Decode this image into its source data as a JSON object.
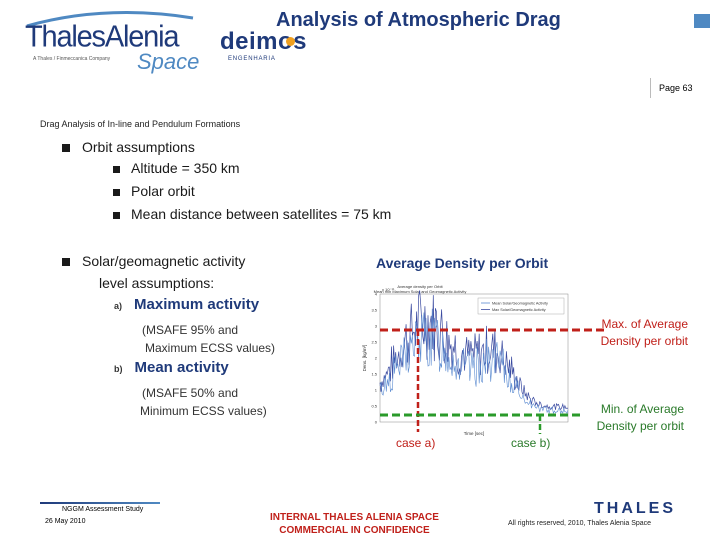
{
  "header": {
    "title": "Analysis of Atmospheric Drag",
    "page_label": "Page 63",
    "logos": {
      "thales_alenia": "ThalesAlenia",
      "thales_alenia_space": "Space",
      "thales_alenia_tagline": "A Thales / Finmeccanica Company",
      "deimos": "deimos",
      "deimos_sub": "ENGENHARIA"
    }
  },
  "subtitle": "Drag Analysis of In-line and Pendulum Formations",
  "orbit": {
    "heading": "Orbit assumptions",
    "items": [
      "Altitude = 350 km",
      "Polar orbit",
      "Mean distance between satellites = 75 km"
    ]
  },
  "activity": {
    "heading_line1": "Solar/geomagnetic activity",
    "heading_line2": "level assumptions:",
    "a_marker": "a)",
    "a_label": "Maximum activity",
    "a_detail_line1": "(MSAFE 95% and",
    "a_detail_line2": "Maximum ECSS values)",
    "b_marker": "b)",
    "b_label": "Mean activity",
    "b_detail_line1": "(MSAFE 50% and",
    "b_detail_line2": "Minimum ECSS values)"
  },
  "chart": {
    "heading": "Average Density per Orbit",
    "max_note_line1": "Max. of Average",
    "max_note_line2": "Density per orbit",
    "min_note_line1": "Min. of Average",
    "min_note_line2": "Density per orbit",
    "case_a": "case a)",
    "case_b": "case b)",
    "colors": {
      "max_line": "#c0201a",
      "min_line": "#2a9a2a",
      "series1": "#3a4aa0",
      "series2": "#5a8ad0"
    }
  },
  "chart_data": {
    "type": "line",
    "title": "Average density per Orbit\nMean min Maximum Solar and Geomagnetic Activity",
    "xlabel": "Time [sec]",
    "ylabel": "Dens. [kg/m³]",
    "ytick_labels": [
      "4",
      "3.5",
      "3",
      "2.5",
      "2",
      "1.5",
      "1",
      "0.5",
      "0"
    ],
    "y_exponent": "x 10⁻¹¹",
    "legend": [
      "Mean Solar/Geomagnetic Activity",
      "Max Solar/Geomagnetic Activity"
    ],
    "legend_position": "top-right"
  },
  "footer": {
    "study": "NGGM Assessment Study",
    "date": "26 May 2010",
    "confidential_line1": "INTERNAL THALES ALENIA SPACE",
    "confidential_line2": "COMMERCIAL IN CONFIDENCE",
    "thales_logo": "THALES",
    "rights": "All rights reserved, 2010, Thales Alenia Space"
  }
}
